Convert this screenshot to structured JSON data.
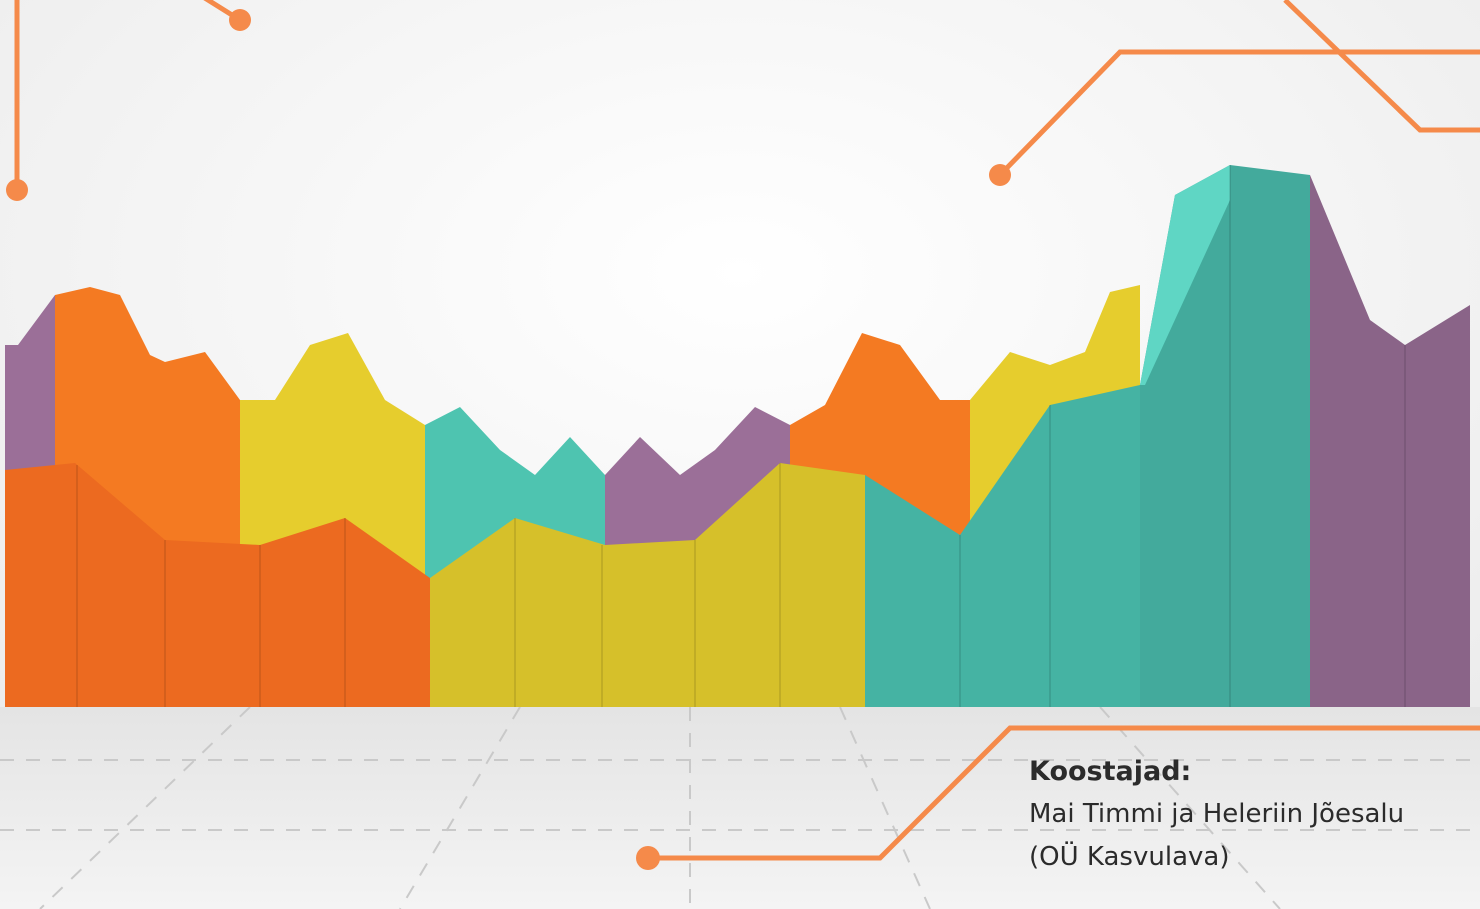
{
  "credits": {
    "heading": "Koostajad:",
    "lines": [
      "Mai Timmi ja Heleriin Jõesalu",
      "(OÜ Kasvulava)"
    ]
  }
}
